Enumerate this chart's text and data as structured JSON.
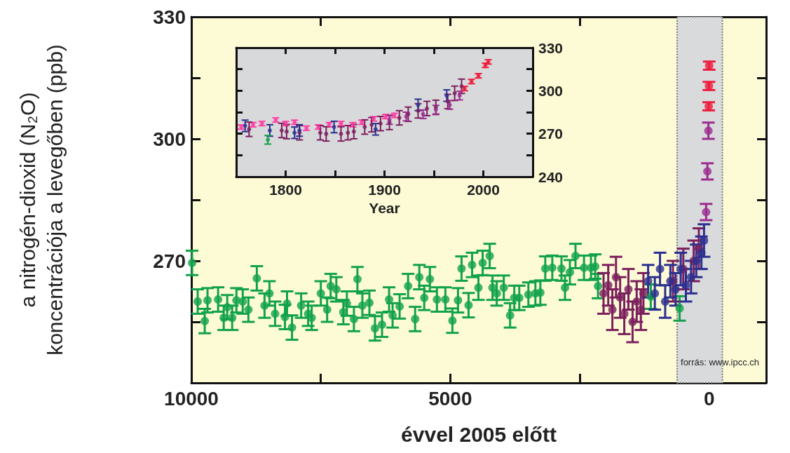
{
  "chart_data": [
    {
      "type": "scatter",
      "xlabel": "évvel 2005 előtt",
      "ylabel": "a nitrogén-dioxid (N₂O)\nkoncentrációja a levegőben (ppb)",
      "xlim": [
        10000,
        -1100
      ],
      "xticks": [
        10000,
        {
          "value": 7500,
          "label": null
        },
        5000,
        {
          "value": 2500,
          "label": null
        },
        0
      ],
      "ylim": [
        240,
        330
      ],
      "yticks": [
        {
          "value": 240,
          "label": null
        },
        {
          "value": 255,
          "label": null
        },
        270,
        {
          "value": 285,
          "label": null
        },
        300,
        {
          "value": 315,
          "label": null
        },
        330
      ],
      "marker": "circle",
      "annotations": [
        "forrás: www.ipcc.ch"
      ],
      "bands": [
        {
          "axis": "x",
          "from": 620,
          "to": -255,
          "color": "#d9dadc"
        }
      ],
      "series": [
        {
          "color": "#12a24b",
          "x": [
            9986,
            9878,
            9742,
            9688,
            9484,
            9375,
            9307,
            9212,
            9130,
            9008,
            8899,
            8736,
            8587,
            8492,
            8383,
            8193,
            8152,
            8057,
            7880,
            7745,
            7677,
            7500,
            7378,
            7310,
            7201,
            7065,
            6997,
            6861,
            6793,
            6698,
            6562,
            6454,
            6318,
            6182,
            6114,
            5978,
            5815,
            5679,
            5598,
            5503,
            5394,
            5258,
            5095,
            4959,
            4851,
            4783,
            4647,
            4579,
            4457,
            4375,
            4239,
            4185,
            4103,
            3967,
            3845,
            3764,
            3668,
            3492,
            3356,
            3261,
            3166,
            3030,
            2853,
            2785,
            2690,
            2582,
            2418,
            2283,
            2201,
            2147,
            1128,
            571
          ],
          "values": [
            269.5,
            260,
            255.2,
            260.3,
            260.5,
            256,
            258.6,
            256,
            260.3,
            260,
            258,
            265.7,
            259,
            262,
            257,
            256.2,
            259.5,
            253.6,
            259,
            257,
            256,
            262,
            258,
            263.8,
            263,
            257.4,
            259.5,
            255.7,
            265.5,
            259,
            259.7,
            253.4,
            254.3,
            260.5,
            256.6,
            258.8,
            263.8,
            255.7,
            266,
            260.9,
            265.5,
            260.5,
            260.5,
            255.3,
            260.3,
            268.1,
            259.1,
            269,
            263.4,
            269.5,
            271.2,
            263.4,
            262,
            263.4,
            256.6,
            260.9,
            260.9,
            261.7,
            262,
            262.2,
            268.1,
            268.3,
            268.1,
            263.4,
            267.2,
            271.2,
            268.3,
            268.3,
            268.6,
            263.8,
            261.2,
            258.3
          ],
          "errors": [
            3,
            3,
            3,
            3,
            3,
            3,
            3,
            3,
            3,
            3,
            3,
            3,
            3,
            3,
            3,
            3,
            3,
            3,
            3,
            3,
            3,
            3,
            3,
            3,
            3,
            3,
            3,
            3,
            3,
            3,
            3,
            3,
            3,
            3,
            3,
            3,
            3,
            3,
            3,
            3,
            3,
            3,
            3,
            3,
            3,
            3,
            3,
            3,
            3,
            3,
            3,
            3,
            3,
            3,
            3,
            3,
            3,
            3,
            3,
            3,
            3,
            3,
            3,
            3,
            3,
            3,
            3,
            3,
            3,
            3,
            3,
            3
          ]
        },
        {
          "color": "#7b1f5c",
          "x": [
            2040,
            1950,
            1870,
            1800,
            1720,
            1640,
            1560,
            1480,
            1400,
            1320,
            1270,
            700,
            500,
            300,
            200
          ],
          "values": [
            262,
            264,
            258,
            266,
            261,
            257,
            263,
            255,
            260,
            258,
            262,
            265,
            268,
            270,
            273
          ],
          "errors": [
            5,
            5,
            5,
            5,
            5,
            5,
            5,
            5,
            5,
            5,
            5,
            5,
            5,
            5,
            5
          ]
        },
        {
          "color": "#2b2f8f",
          "x": [
            1180,
            1050,
            950,
            850,
            750,
            650,
            550,
            450,
            350,
            250,
            150,
            100
          ],
          "values": [
            265,
            262,
            268,
            260,
            265,
            263,
            268,
            264,
            266,
            270,
            272,
            275
          ],
          "errors": [
            4,
            4,
            4,
            4,
            4,
            4,
            4,
            4,
            4,
            4,
            4,
            4
          ]
        },
        {
          "color": "#9b2d8f",
          "x": [
            60,
            35,
            15
          ],
          "values": [
            282,
            292,
            302
          ],
          "errors": [
            2,
            2,
            2
          ]
        },
        {
          "color": "#ee1c3c",
          "x": [
            10,
            5,
            0
          ],
          "values": [
            308,
            313,
            318
          ],
          "errors": [
            1,
            1,
            1
          ]
        }
      ]
    },
    {
      "type": "scatter",
      "xlabel": "Year",
      "xlim": [
        1750,
        2050
      ],
      "xticks": [
        1800,
        {
          "value": 1850,
          "label": null
        },
        1900,
        {
          "value": 1950,
          "label": null
        },
        2000
      ],
      "ylim": [
        240,
        330
      ],
      "yticks": [
        240,
        {
          "value": 255,
          "label": null
        },
        270,
        {
          "value": 285,
          "label": null
        },
        300,
        {
          "value": 315,
          "label": null
        },
        330
      ],
      "marker": "circle",
      "series": [
        {
          "color": "#ff3fa4",
          "x": [
            1755,
            1767,
            1776,
            1790,
            1800,
            1809,
            1821,
            1833,
            1844,
            1856,
            1868,
            1877,
            1889,
            1901,
            1910
          ],
          "values": [
            274.7,
            276.3,
            277.1,
            279.6,
            277.1,
            278,
            273.9,
            274.7,
            276.3,
            277.1,
            276.3,
            278,
            280.4,
            282,
            282.8
          ],
          "errors": [
            1.5,
            1.5,
            1.5,
            1.5,
            1.5,
            1.5,
            1.5,
            1.5,
            1.5,
            1.5,
            1.5,
            1.5,
            1.5,
            1.5,
            1.5
          ]
        },
        {
          "color": "#7b1f5c",
          "x": [
            1763,
            1796,
            1801,
            1814,
            1835,
            1841,
            1856,
            1863,
            1869,
            1880,
            1887,
            1896,
            1905,
            1915,
            1924,
            1934,
            1943,
            1952,
            1964,
            1971,
            1978
          ],
          "values": [
            273.1,
            272.3,
            271.5,
            270.7,
            270.7,
            269.9,
            269.9,
            270.7,
            271.5,
            274.7,
            276.3,
            277.1,
            277.9,
            281.1,
            283.6,
            286,
            287.6,
            288.4,
            292.5,
            298.2,
            303.1
          ],
          "errors": [
            5,
            5,
            5,
            5,
            5,
            5,
            5,
            5,
            5,
            5,
            5,
            5,
            5,
            5,
            5,
            5,
            5,
            5,
            5,
            5,
            5
          ]
        },
        {
          "color": "#2b2f8f",
          "x": [
            1759,
            1784,
            1809,
            1814,
            1849,
            1891,
            1934,
            1963
          ],
          "values": [
            275.5,
            272.3,
            270.7,
            272.3,
            274.7,
            273.1,
            290.1,
            296.6
          ],
          "errors": [
            4,
            4,
            4,
            4,
            4,
            4,
            4,
            4
          ]
        },
        {
          "color": "#12a24b",
          "x": [
            1782
          ],
          "values": [
            265.8
          ],
          "errors": [
            3
          ]
        },
        {
          "color": "#9b2d8f",
          "x": [
            1905,
            1922,
            1939,
            1952,
            1966,
            1976
          ],
          "values": [
            279.6,
            282,
            283.6,
            286.8,
            290.1,
            296.6
          ],
          "errors": [
            3,
            3,
            3,
            3,
            3,
            3
          ]
        },
        {
          "color": "#ee1c3c",
          "x": [
            1981,
            1988,
            1995,
            2002,
            2005
          ],
          "values": [
            301.5,
            306.4,
            310.4,
            317.7,
            320.1
          ],
          "errors": [
            1.5,
            1.5,
            1.5,
            1.5,
            1.5
          ]
        }
      ]
    }
  ]
}
